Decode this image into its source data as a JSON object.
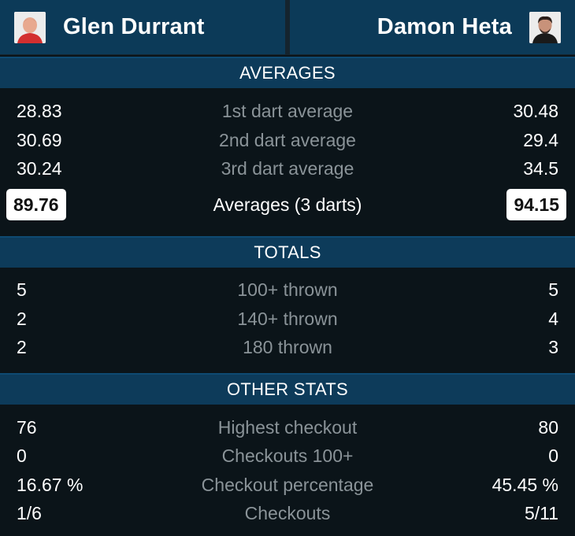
{
  "header": {
    "player_left": {
      "name": "Glen Durrant",
      "avatar_icon": "player-photo-icon"
    },
    "player_right": {
      "name": "Damon Heta",
      "avatar_icon": "player-photo-icon"
    }
  },
  "sections": {
    "averages": {
      "title": "AVERAGES",
      "rows": [
        {
          "label": "1st dart average",
          "left": "28.83",
          "right": "30.48"
        },
        {
          "label": "2nd dart average",
          "left": "30.69",
          "right": "29.4"
        },
        {
          "label": "3rd dart average",
          "left": "30.24",
          "right": "34.5"
        }
      ],
      "summary": {
        "label": "Averages (3 darts)",
        "left": "89.76",
        "right": "94.15"
      }
    },
    "totals": {
      "title": "TOTALS",
      "rows": [
        {
          "label": "100+ thrown",
          "left": "5",
          "right": "5"
        },
        {
          "label": "140+ thrown",
          "left": "2",
          "right": "4"
        },
        {
          "label": "180 thrown",
          "left": "2",
          "right": "3"
        }
      ]
    },
    "other": {
      "title": "OTHER STATS",
      "rows": [
        {
          "label": "Highest checkout",
          "left": "76",
          "right": "80"
        },
        {
          "label": "Checkouts 100+",
          "left": "0",
          "right": "0"
        },
        {
          "label": "Checkout percentage",
          "left": "16.67 %",
          "right": "45.45 %"
        },
        {
          "label": "Checkouts",
          "left": "1/6",
          "right": "5/11"
        }
      ]
    }
  },
  "colors": {
    "background": "#0b1419",
    "header_panel": "#0c3a58",
    "section_bar": "#0d3b5a",
    "label_gray": "#8a9398",
    "highlight_box": "#ffffff"
  }
}
